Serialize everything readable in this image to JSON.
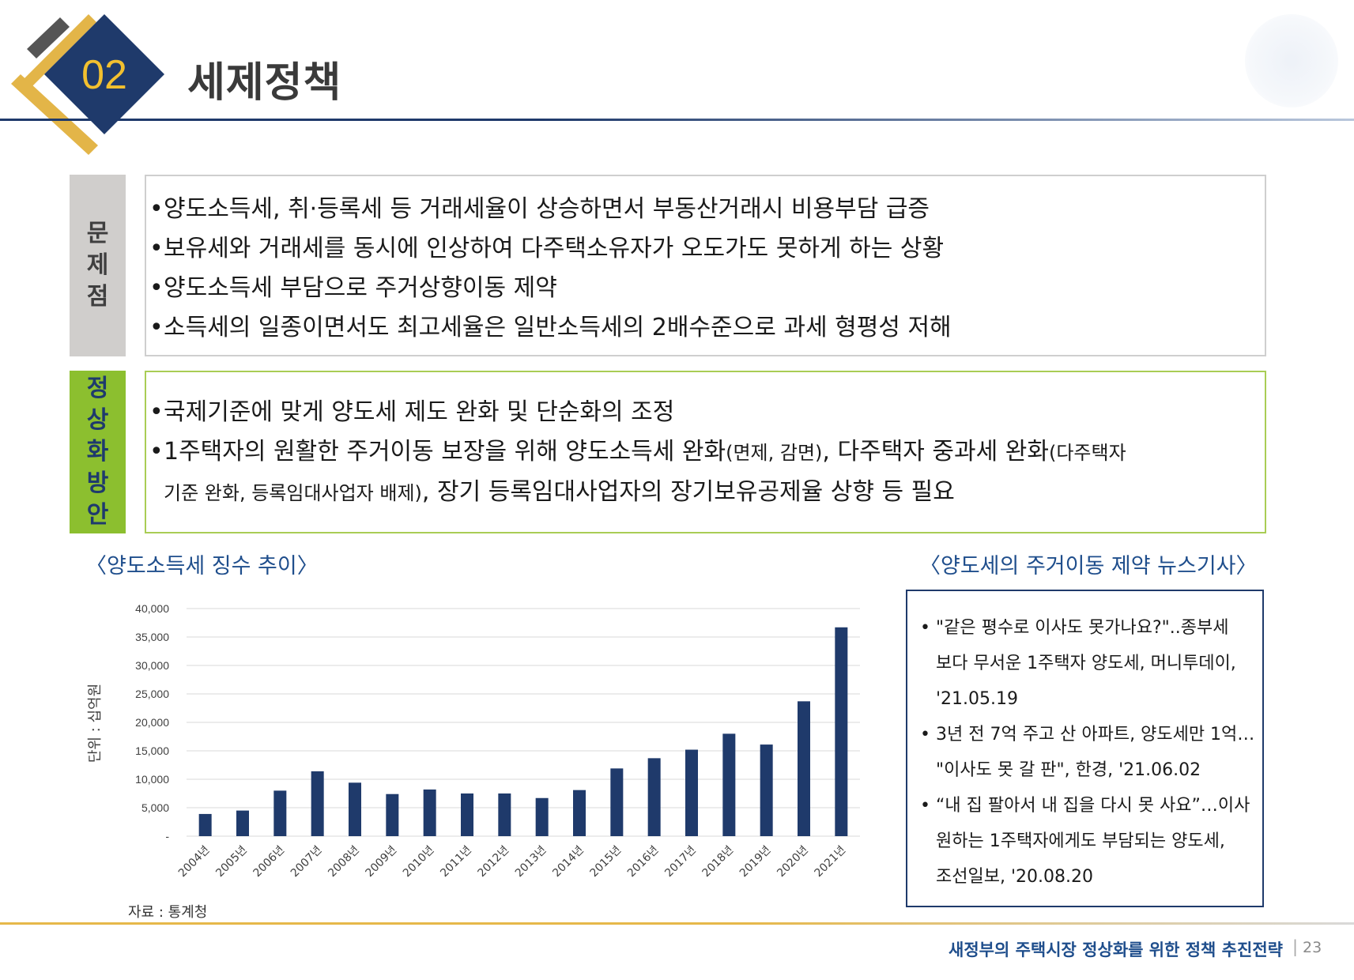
{
  "header": {
    "section_number": "02",
    "section_title": "세제정책"
  },
  "problem": {
    "label": "문제점",
    "items": [
      "양도소득세, 취·등록세 등 거래세율이 상승하면서 부동산거래시 비용부담 급증",
      "보유세와 거래세를 동시에 인상하여 다주택소유자가 오도가도 못하게 하는 상황",
      "양도소득세 부담으로 주거상향이동 제약",
      "소득세의 일종이면서도 최고세율은 일반소득세의 2배수준으로 과세 형평성 저해"
    ]
  },
  "solution": {
    "label": "정상화방안",
    "item1": "국제기준에 맞게 양도세 제도 완화 및 단순화의 조정",
    "item2": {
      "part1": "1주택자의 원활한 주거이동 보장을 위해 양도소득세 완화",
      "part2": "(면제, 감면)",
      "part3": ", 다주택자 중과세 완화",
      "part4": "(다주택자",
      "part5": "기준 완화, 등록임대사업자 배제)",
      "part6": ", 장기 등록임대사업자의 장기보유공제율 상향 등 필요"
    }
  },
  "chart_section": {
    "title": "〈양도소득세 징수 추이〉",
    "source": "자료 : 통계청"
  },
  "chart_data": {
    "type": "bar",
    "categories": [
      "2004년",
      "2005년",
      "2006년",
      "2007년",
      "2008년",
      "2009년",
      "2010년",
      "2011년",
      "2012년",
      "2013년",
      "2014년",
      "2015년",
      "2016년",
      "2017년",
      "2018년",
      "2019년",
      "2020년",
      "2021년"
    ],
    "values": [
      3900,
      4500,
      8000,
      11400,
      9400,
      7400,
      8200,
      7500,
      7500,
      6700,
      8100,
      11900,
      13700,
      15200,
      18000,
      16100,
      23700,
      36700
    ],
    "ylabel": "단위 : 십억원",
    "ylim": [
      0,
      40000
    ],
    "yticks": [
      "-",
      "5,000",
      "10,000",
      "15,000",
      "20,000",
      "25,000",
      "30,000",
      "35,000",
      "40,000"
    ],
    "bar_color": "#1f3a6b",
    "grid": true
  },
  "news": {
    "title": "〈양도세의 주거이동 제약 뉴스기사〉",
    "items": [
      [
        "\"같은 평수로 이사도 못가나요?\"..종부세",
        "보다 무서운 1주택자 양도세, 머니투데이,",
        "'21.05.19"
      ],
      [
        "3년 전 7억 주고 산 아파트, 양도세만 1억…",
        "\"이사도 못 갈 판\", 한경, '21.06.02"
      ],
      [
        "“내 집 팔아서 내 집을 다시 못 사요”…이사",
        "원하는 1주택자에게도 부담되는 양도세,",
        "조선일보, '20.08.20"
      ]
    ]
  },
  "footer": {
    "text": "새정부의 주택시장 정상화를 위한 정책 추진전략",
    "separator": "|",
    "page": "23"
  },
  "colors": {
    "navy": "#1f3a6b",
    "gold": "#e3b548",
    "green": "#8cbf2f",
    "gray": "#d0cecc"
  }
}
